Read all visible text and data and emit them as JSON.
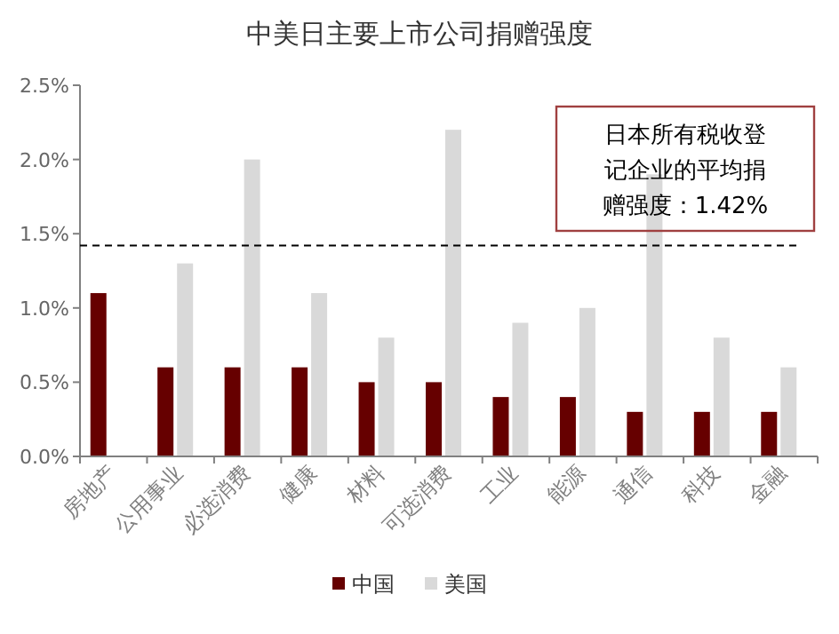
{
  "chart_data": {
    "type": "bar",
    "title": "中美日主要上市公司捐赠强度",
    "categories": [
      "房地产",
      "公用事业",
      "必选消费",
      "健康",
      "材料",
      "可选消费",
      "工业",
      "能源",
      "通信",
      "科技",
      "金融"
    ],
    "series": [
      {
        "name": "中国",
        "color": "#660000",
        "values": [
          1.1,
          0.6,
          0.6,
          0.6,
          0.5,
          0.5,
          0.4,
          0.4,
          0.3,
          0.3,
          0.3
        ]
      },
      {
        "name": "美国",
        "color": "#d9d9d9",
        "values": [
          null,
          1.3,
          2.0,
          1.1,
          0.8,
          2.2,
          0.9,
          1.0,
          1.9,
          0.8,
          0.6
        ]
      }
    ],
    "ylim": [
      0,
      2.5
    ],
    "yticks": [
      {
        "value": 0,
        "label": "0.0%"
      },
      {
        "value": 0.5,
        "label": "0.5%"
      },
      {
        "value": 1,
        "label": "1.0%"
      },
      {
        "value": 1.5,
        "label": "1.5%"
      },
      {
        "value": 2,
        "label": "2.0%"
      },
      {
        "value": 2.5,
        "label": "2.5%"
      }
    ],
    "ref_lines": [
      {
        "axis": "y",
        "value": 1.42,
        "label": "日本所有税收登记企业的平均捐赠强度：1.42%",
        "line_style": "dashed",
        "color": "#000000"
      }
    ],
    "legend": "bottom",
    "grid": false
  }
}
